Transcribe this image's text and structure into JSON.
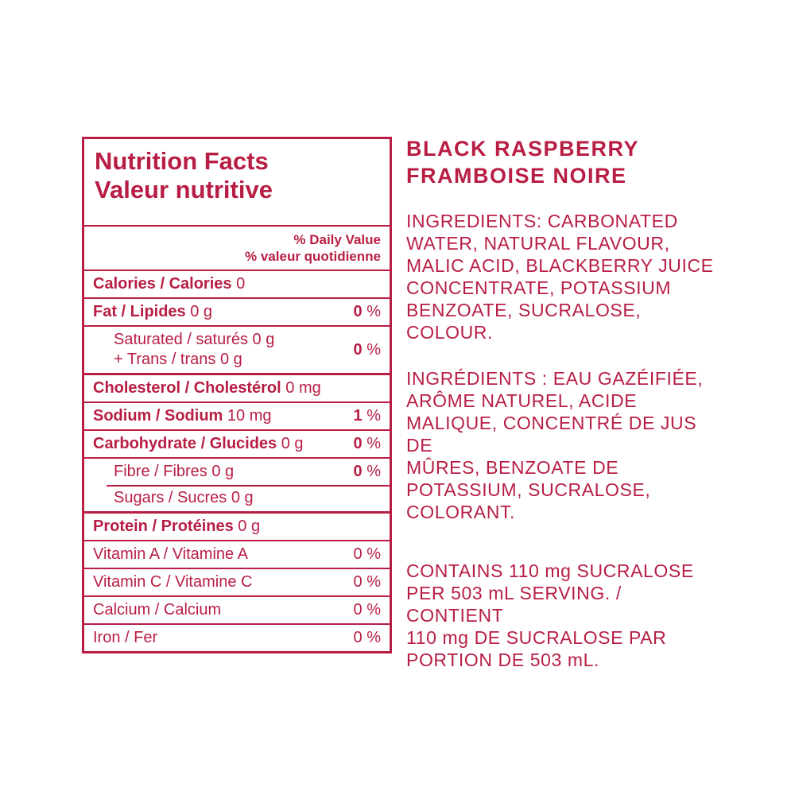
{
  "colors": {
    "brand_red": "#B81E44",
    "background": "#FFFFFF"
  },
  "nutrition_table": {
    "title_en": "Nutrition Facts",
    "title_fr": "Valeur nutritive",
    "daily_value_en": "% Daily Value",
    "daily_value_fr": "% valeur quotidienne",
    "rows": [
      {
        "id": "calories",
        "bold": "Calories / Calories",
        "rest": "0"
      },
      {
        "id": "fat",
        "bold": "Fat / Lipides",
        "rest": "0 g",
        "percent": "0",
        "percent_bold": true
      },
      {
        "id": "saturated-trans",
        "lines": [
          "Saturated / saturés 0 g",
          "+ Trans / trans 0 g"
        ],
        "indent": true,
        "percent": "0",
        "percent_bold": true
      },
      {
        "id": "cholesterol",
        "bold": "Cholesterol / Cholestérol",
        "rest": "0 mg",
        "thick": true
      },
      {
        "id": "sodium",
        "bold": "Sodium / Sodium",
        "rest": "10 mg",
        "percent": "1",
        "percent_bold": true
      },
      {
        "id": "carbohydrate",
        "bold": "Carbohydrate / Glucides",
        "rest": "0 g",
        "percent": "0",
        "percent_bold": true
      },
      {
        "id": "fibre",
        "plain": "Fibre / Fibres 0 g",
        "indent": true,
        "percent": "0",
        "percent_bold": true
      },
      {
        "id": "sugars",
        "plain": "Sugars / Sucres 0 g",
        "indent": true,
        "sep_indent": true
      },
      {
        "id": "protein",
        "bold": "Protein / Protéines",
        "rest": "0 g",
        "thick": true
      },
      {
        "id": "vitamin-a",
        "plain": "Vitamin A / Vitamine A",
        "percent": "0",
        "percent_bold": false
      },
      {
        "id": "vitamin-c",
        "plain": "Vitamin C / Vitamine C",
        "percent": "0",
        "percent_bold": false
      },
      {
        "id": "calcium",
        "plain": "Calcium / Calcium",
        "percent": "0",
        "percent_bold": false
      },
      {
        "id": "iron",
        "plain": "Iron / Fer",
        "percent": "0",
        "percent_bold": false
      }
    ]
  },
  "product": {
    "name_lines": [
      "BLACK RASPBERRY",
      "FRAMBOISE NOIRE"
    ],
    "ingredients_en_lines": [
      "INGREDIENTS: CARBONATED",
      "WATER, NATURAL FLAVOUR,",
      "MALIC ACID, BLACKBERRY JUICE",
      "CONCENTRATE, POTASSIUM",
      "BENZOATE, SUCRALOSE, COLOUR."
    ],
    "ingredients_fr_lines": [
      "INGRÉDIENTS : EAU GAZÉIFIÉE,",
      "ARÔME NATUREL, ACIDE",
      "MALIQUE, CONCENTRÉ DE JUS DE",
      "MÛRES, BENZOATE DE",
      "POTASSIUM, SUCRALOSE,",
      "COLORANT."
    ],
    "contains_lines": [
      "CONTAINS 110 mg SUCRALOSE",
      "PER 503 mL SERVING. / CONTIENT",
      "110 mg DE SUCRALOSE PAR",
      "PORTION DE 503 mL."
    ]
  }
}
